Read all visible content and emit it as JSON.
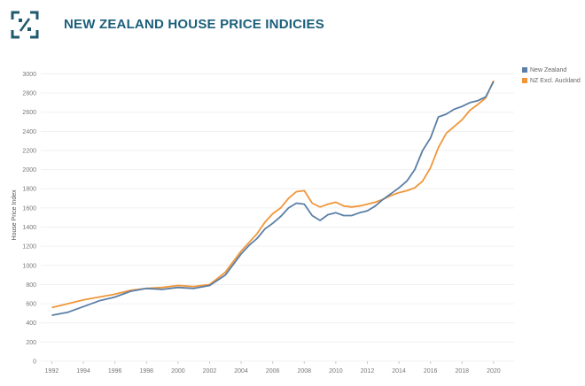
{
  "header": {
    "title": "NEW ZEALAND HOUSE PRICE INDICIES",
    "logo_icon": "percent-box-icon"
  },
  "colors": {
    "new_zealand": "#5b7fa6",
    "nz_excl_auckland": "#f0963a",
    "title": "#1b5f7a",
    "logo": "#1f5a6e"
  },
  "chart_data": {
    "type": "line",
    "title": "",
    "xlabel": "",
    "ylabel": "House Price Index",
    "xlim": [
      1991.3,
      2021.3
    ],
    "ylim": [
      0,
      3050
    ],
    "x_ticks": [
      "1992",
      "1994",
      "1996",
      "1998",
      "2000",
      "2002",
      "2004",
      "2006",
      "2008",
      "2010",
      "2012",
      "2014",
      "2016",
      "2018",
      "2020"
    ],
    "y_ticks": [
      "0",
      "200",
      "400",
      "600",
      "800",
      "1000",
      "1200",
      "1400",
      "1600",
      "1800",
      "2000",
      "2200",
      "2400",
      "2600",
      "2800",
      "3000"
    ],
    "legend_position": "top-right",
    "grid": true,
    "series": [
      {
        "name": "New Zealand",
        "color": "#5b7fa6",
        "x": [
          1992.0,
          1993.0,
          1994.0,
          1995.0,
          1996.0,
          1997.0,
          1998.0,
          1999.0,
          2000.0,
          2001.0,
          2002.0,
          2003.0,
          2004.0,
          2004.5,
          2005.0,
          2005.5,
          2006.0,
          2006.5,
          2007.0,
          2007.5,
          2008.0,
          2008.5,
          2009.0,
          2009.5,
          2010.0,
          2010.5,
          2011.0,
          2011.5,
          2012.0,
          2012.5,
          2013.0,
          2013.5,
          2014.0,
          2014.5,
          2015.0,
          2015.5,
          2016.0,
          2016.5,
          2017.0,
          2017.5,
          2018.0,
          2018.5,
          2019.0,
          2019.5,
          2020.0
        ],
        "y": [
          480,
          510,
          570,
          630,
          670,
          730,
          760,
          750,
          770,
          760,
          790,
          900,
          1120,
          1210,
          1280,
          1380,
          1440,
          1510,
          1600,
          1650,
          1640,
          1520,
          1470,
          1530,
          1550,
          1520,
          1520,
          1550,
          1570,
          1620,
          1690,
          1750,
          1810,
          1880,
          2000,
          2200,
          2330,
          2550,
          2580,
          2630,
          2660,
          2700,
          2720,
          2760,
          2920
        ]
      },
      {
        "name": "NZ Excl. Auckland",
        "color": "#f0963a",
        "x": [
          1992.0,
          1993.0,
          1994.0,
          1995.0,
          1996.0,
          1997.0,
          1998.0,
          1999.0,
          2000.0,
          2001.0,
          2002.0,
          2003.0,
          2004.0,
          2004.5,
          2005.0,
          2005.5,
          2006.0,
          2006.5,
          2007.0,
          2007.5,
          2008.0,
          2008.5,
          2009.0,
          2009.5,
          2010.0,
          2010.5,
          2011.0,
          2011.5,
          2012.0,
          2012.5,
          2013.0,
          2013.5,
          2014.0,
          2014.5,
          2015.0,
          2015.5,
          2016.0,
          2016.5,
          2017.0,
          2017.5,
          2018.0,
          2018.5,
          2019.0,
          2019.5,
          2020.0
        ],
        "y": [
          560,
          600,
          640,
          670,
          700,
          740,
          760,
          770,
          790,
          780,
          800,
          930,
          1150,
          1240,
          1330,
          1450,
          1540,
          1600,
          1700,
          1770,
          1780,
          1650,
          1610,
          1640,
          1660,
          1620,
          1610,
          1620,
          1640,
          1660,
          1690,
          1730,
          1760,
          1780,
          1810,
          1880,
          2020,
          2230,
          2380,
          2450,
          2520,
          2620,
          2680,
          2750,
          2930
        ]
      }
    ]
  }
}
